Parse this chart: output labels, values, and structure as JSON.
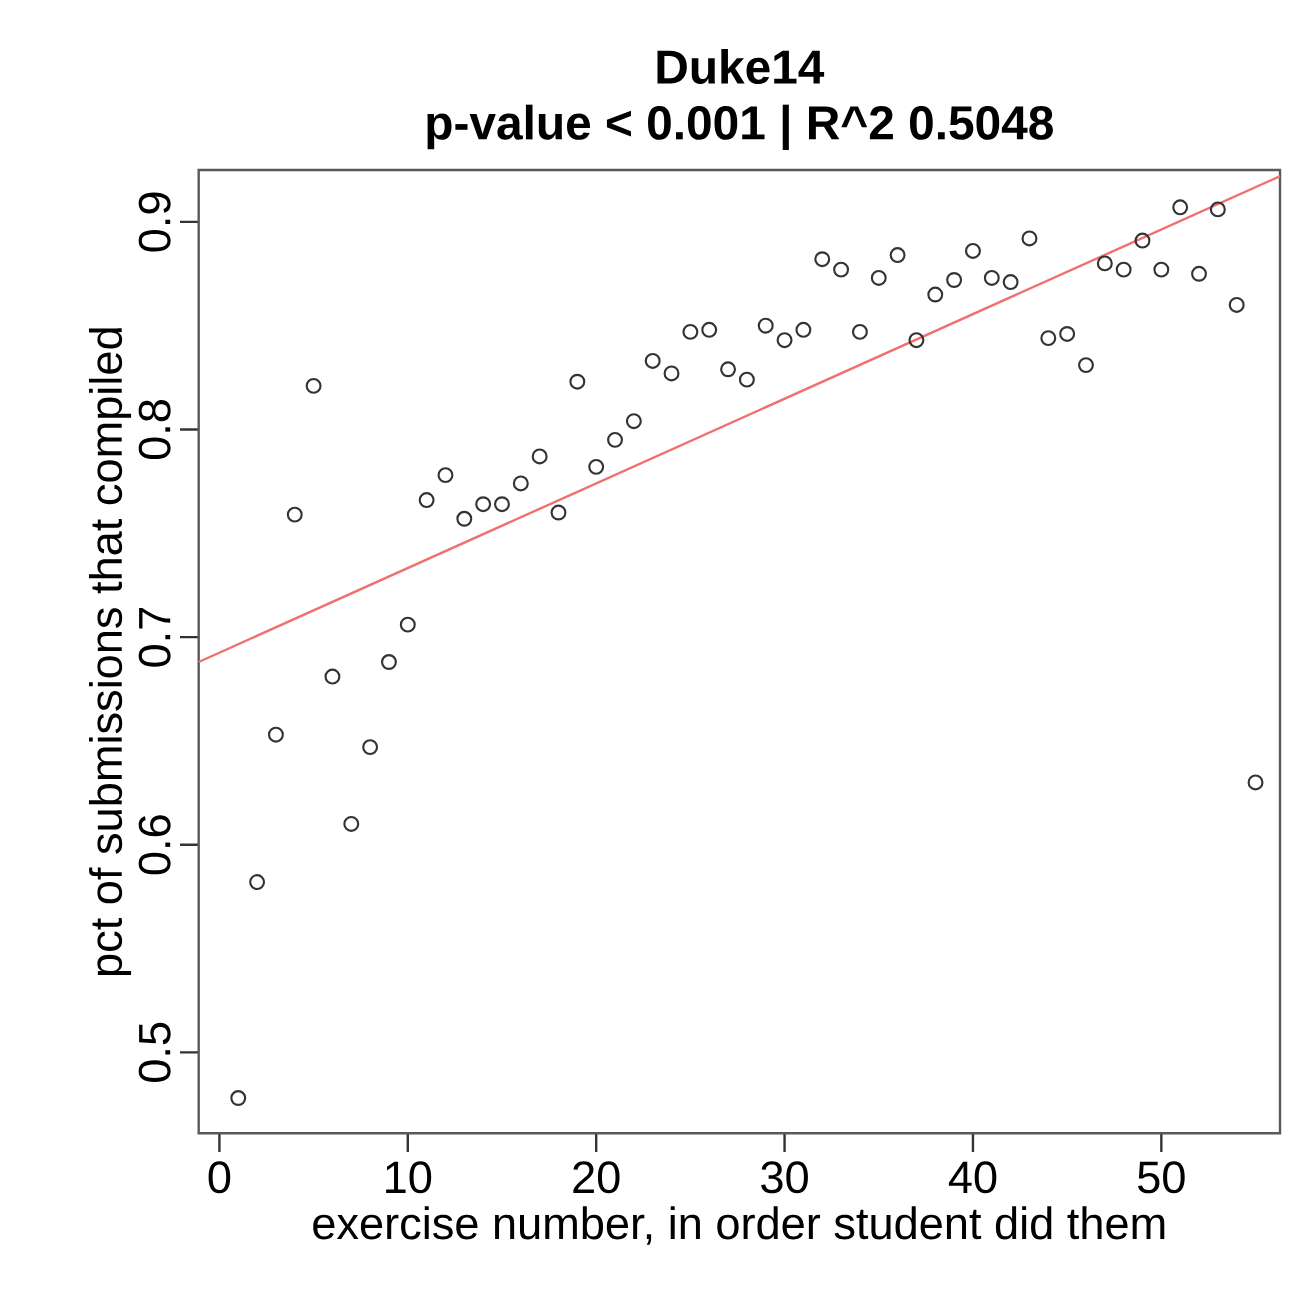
{
  "chart_data": {
    "type": "scatter",
    "title": "Duke14",
    "subtitle": "p-value < 0.001  |  R^2 0.5048",
    "xlabel": "exercise number, in order student did them",
    "ylabel": "pct of submissions that compiled",
    "xlim": [
      -1.1,
      56.3
    ],
    "ylim": [
      0.461,
      0.925
    ],
    "xticks": [
      0,
      10,
      20,
      30,
      40,
      50
    ],
    "yticks": [
      0.5,
      0.6,
      0.7,
      0.8,
      0.9
    ],
    "series": [
      {
        "marker": "circle",
        "color": "#333333",
        "x": [
          1,
          2,
          3,
          4,
          5,
          6,
          7,
          8,
          9,
          10,
          11,
          12,
          13,
          14,
          15,
          16,
          17,
          18,
          19,
          20,
          21,
          22,
          23,
          24,
          25,
          26,
          27,
          28,
          29,
          30,
          31,
          32,
          33,
          34,
          35,
          36,
          37,
          38,
          39,
          40,
          41,
          42,
          43,
          44,
          45,
          46,
          47,
          48,
          49,
          50,
          51,
          52,
          53,
          54,
          55
        ],
        "values": [
          0.478,
          0.582,
          0.653,
          0.759,
          0.821,
          0.681,
          0.61,
          0.647,
          0.688,
          0.706,
          0.766,
          0.778,
          0.757,
          0.764,
          0.764,
          0.774,
          0.787,
          0.76,
          0.823,
          0.782,
          0.795,
          0.804,
          0.833,
          0.827,
          0.847,
          0.848,
          0.829,
          0.824,
          0.85,
          0.843,
          0.848,
          0.882,
          0.877,
          0.847,
          0.873,
          0.884,
          0.843,
          0.865,
          0.872,
          0.886,
          0.873,
          0.871,
          0.892,
          0.844,
          0.846,
          0.831,
          0.88,
          0.877,
          0.891,
          0.877,
          0.907,
          0.875,
          0.906,
          0.86,
          0.63
        ]
      },
      {
        "type": "line",
        "color": "#f07070",
        "x": [
          -1.1,
          56.3
        ],
        "values": [
          0.688,
          0.922
        ]
      }
    ]
  }
}
